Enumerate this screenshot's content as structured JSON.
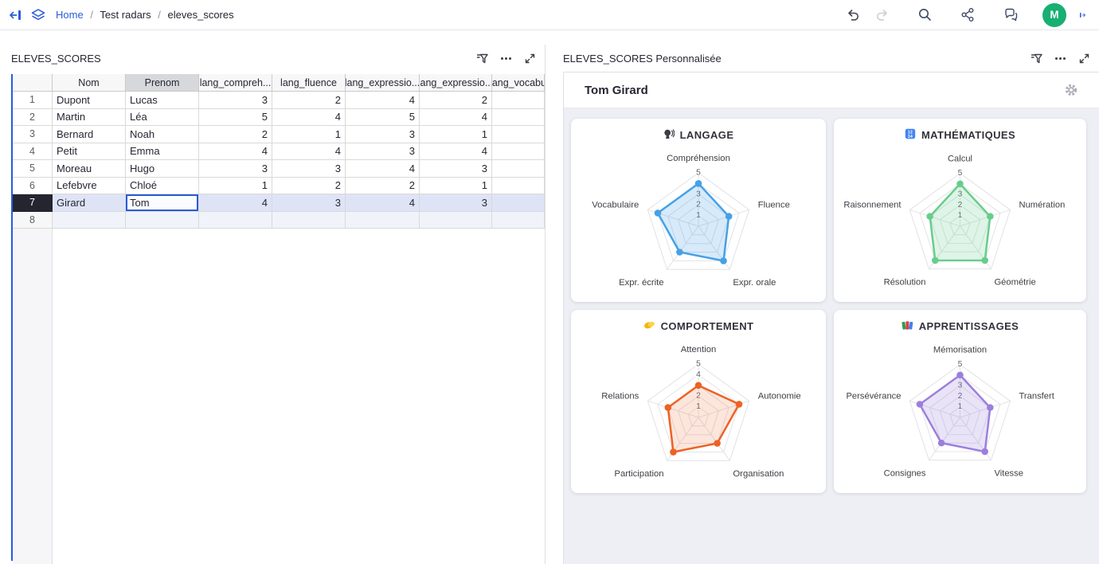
{
  "topbar": {
    "breadcrumb": {
      "home": "Home",
      "sep": "/",
      "workspace": "Test radars",
      "page": "eleves_scores"
    },
    "avatar_initial": "M",
    "icons": [
      "collapse-sidebar-icon",
      "pages-icon",
      "undo-icon",
      "redo-icon",
      "search-icon",
      "share-icon",
      "comments-icon",
      "panel-toggle-icon"
    ],
    "colors": {
      "accent_blue": "#2a5bdb",
      "avatar_green": "#17af72",
      "undo_enabled": "#45464f",
      "redo_disabled": "#cdced6",
      "icon_slate": "#3e4a67"
    }
  },
  "left_panel": {
    "title": "ELEVES_SCORES",
    "header_icons": [
      "sort-filter-icon",
      "menu-icon",
      "expand-section-icon"
    ],
    "table": {
      "columns": [
        "Nom",
        "Prenom",
        "lang_compreh...",
        "lang_fluence",
        "lang_expressio...",
        "lang_expressio...",
        "lang_vocabu"
      ],
      "selected_column_index": 1,
      "cursor": {
        "row_index": 6,
        "col_index": 1
      },
      "rows": [
        {
          "num": "1",
          "cells": [
            "Dupont",
            "Lucas",
            "3",
            "2",
            "4",
            "2",
            ""
          ]
        },
        {
          "num": "2",
          "cells": [
            "Martin",
            "Léa",
            "5",
            "4",
            "5",
            "4",
            ""
          ]
        },
        {
          "num": "3",
          "cells": [
            "Bernard",
            "Noah",
            "2",
            "1",
            "3",
            "1",
            ""
          ]
        },
        {
          "num": "4",
          "cells": [
            "Petit",
            "Emma",
            "4",
            "4",
            "3",
            "4",
            ""
          ]
        },
        {
          "num": "5",
          "cells": [
            "Moreau",
            "Hugo",
            "3",
            "3",
            "4",
            "3",
            ""
          ]
        },
        {
          "num": "6",
          "cells": [
            "Lefebvre",
            "Chloé",
            "1",
            "2",
            "2",
            "1",
            ""
          ]
        },
        {
          "num": "7",
          "cells": [
            "Girard",
            "Tom",
            "4",
            "3",
            "4",
            "3",
            ""
          ],
          "selected": true
        },
        {
          "num": "8",
          "cells": [
            "",
            "",
            "",
            "",
            "",
            "",
            ""
          ],
          "add_row": true
        }
      ],
      "colors": {
        "selected_row_bg": "#dee4f6",
        "selected_rownum_bg": "#24252f",
        "cursor_border": "#2a5bdb",
        "header_bg": "#f7f7f7",
        "selected_header_bg": "#d7d8db"
      }
    }
  },
  "right_panel": {
    "title": "ELEVES_SCORES Personnalisée",
    "header_icons": [
      "sort-filter-icon",
      "menu-icon",
      "expand-section-icon"
    ],
    "widget_title": "Tom Girard",
    "widget_icons": [
      "widget-options-gear-icon"
    ]
  },
  "chart_data": [
    {
      "type": "radar",
      "title": "LANGAGE",
      "icon": "speaking-head",
      "color": "#45a1e8",
      "fill_opacity": 0.22,
      "categories": [
        "Compréhension",
        "Fluence",
        "Expr. orale",
        "Expr. écrite",
        "Vocabulaire"
      ],
      "values": [
        4,
        3,
        4,
        3,
        4
      ],
      "ticks": [
        1,
        2,
        3,
        4,
        5
      ],
      "rmin": 0,
      "rmax": 5,
      "grid": true,
      "legend": "none"
    },
    {
      "type": "radar",
      "title": "MATHÉMATIQUES",
      "icon": "input-numbers",
      "color": "#67cd8b",
      "fill_opacity": 0.22,
      "categories": [
        "Calcul",
        "Numération",
        "Géométrie",
        "Résolution",
        "Raisonnement"
      ],
      "values": [
        4,
        3,
        4,
        4,
        3
      ],
      "ticks": [
        1,
        2,
        3,
        4,
        5
      ],
      "rmin": 0,
      "rmax": 5,
      "grid": true,
      "legend": "none"
    },
    {
      "type": "radar",
      "title": "COMPORTEMENT",
      "icon": "handshake",
      "color": "#ed6224",
      "fill_opacity": 0.16,
      "categories": [
        "Attention",
        "Autonomie",
        "Organisation",
        "Participation",
        "Relations"
      ],
      "values": [
        3,
        4,
        3,
        4,
        3
      ],
      "ticks": [
        1,
        2,
        3,
        4,
        5
      ],
      "rmin": 0,
      "rmax": 5,
      "grid": true,
      "legend": "none"
    },
    {
      "type": "radar",
      "title": "APPRENTISSAGES",
      "icon": "books",
      "color": "#9c7fdd",
      "fill_opacity": 0.22,
      "categories": [
        "Mémorisation",
        "Transfert",
        "Vitesse",
        "Consignes",
        "Persévérance"
      ],
      "values": [
        4,
        3,
        4,
        3,
        4
      ],
      "ticks": [
        1,
        2,
        3,
        4,
        5
      ],
      "rmin": 0,
      "rmax": 5,
      "grid": true,
      "legend": "none"
    }
  ]
}
